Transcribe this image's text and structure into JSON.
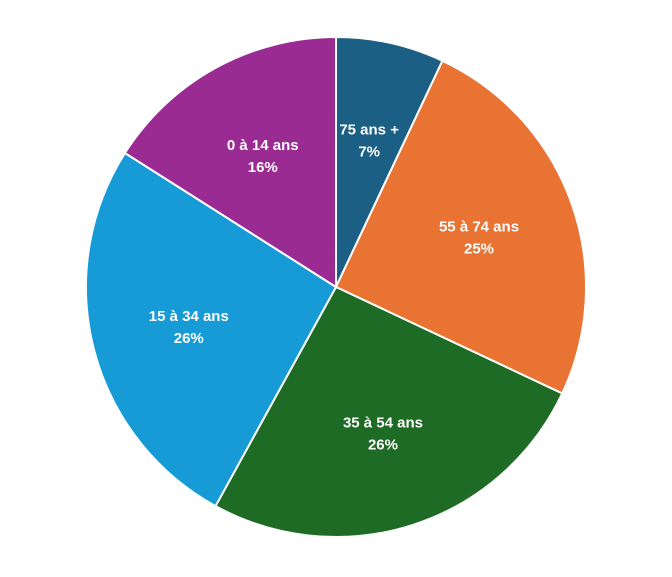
{
  "chart_data": {
    "type": "pie",
    "title": "",
    "start_angle_deg": 0,
    "direction": "clockwise",
    "slices": [
      {
        "label": "75 ans +",
        "value": 7,
        "value_label": "7%",
        "color": "#1c5f84"
      },
      {
        "label": "55 à 74 ans",
        "value": 25,
        "value_label": "25%",
        "color": "#e97333"
      },
      {
        "label": "35 à 54 ans",
        "value": 26,
        "value_label": "26%",
        "color": "#1e6b26"
      },
      {
        "label": "15 à 34 ans",
        "value": 26,
        "value_label": "26%",
        "color": "#169bd7"
      },
      {
        "label": "0 à 14 ans",
        "value": 16,
        "value_label": "16%",
        "color": "#9a2b93"
      }
    ]
  }
}
